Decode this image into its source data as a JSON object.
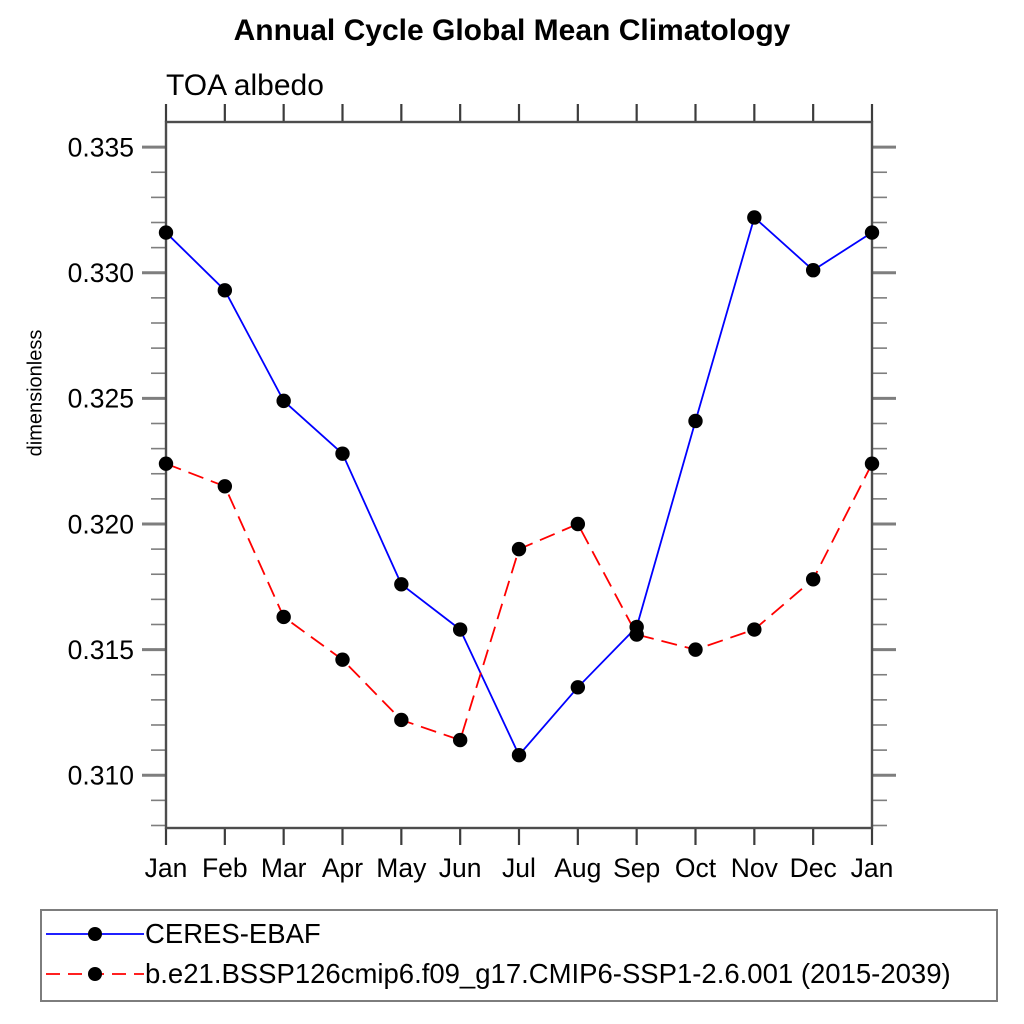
{
  "chart_data": {
    "type": "line",
    "title": "Annual Cycle Global Mean Climatology",
    "subtitle": "TOA albedo",
    "ylabel": "dimensionless",
    "xlabel": "",
    "categories": [
      "Jan",
      "Feb",
      "Mar",
      "Apr",
      "May",
      "Jun",
      "Jul",
      "Aug",
      "Sep",
      "Oct",
      "Nov",
      "Dec",
      "Jan"
    ],
    "series": [
      {
        "name": "CERES-EBAF",
        "color": "#0000ff",
        "line_style": "solid",
        "marker": "filled-circle",
        "marker_color": "#000000",
        "values": [
          0.3316,
          0.3293,
          0.3249,
          0.3228,
          0.3176,
          0.3158,
          0.3108,
          0.3135,
          0.3159,
          0.3241,
          0.3322,
          0.3301,
          0.3316
        ]
      },
      {
        "name": "b.e21.BSSP126cmip6.f09_g17.CMIP6-SSP1-2.6.001 (2015-2039)",
        "color": "#ff0000",
        "line_style": "dashed",
        "marker": "filled-circle",
        "marker_color": "#000000",
        "values": [
          0.3224,
          0.3215,
          0.3163,
          0.3146,
          0.3122,
          0.3114,
          0.319,
          0.32,
          0.3156,
          0.315,
          0.3158,
          0.3178,
          0.3224
        ]
      }
    ],
    "ylim": [
      0.3079,
      0.336
    ],
    "yticks_major": {
      "values": [
        0.31,
        0.315,
        0.32,
        0.325,
        0.33,
        0.335
      ],
      "labels": [
        "0.310",
        "0.315",
        "0.320",
        "0.325",
        "0.330",
        "0.335"
      ]
    },
    "ytick_minor_step": 0.001,
    "grid": false,
    "legend_position": "bottom"
  },
  "style": {
    "frame_color": "#4d4d4d",
    "x_tick_color": "#3c3c3c",
    "y_tick_color": "#7e7e7e",
    "text_color": "#000000"
  }
}
